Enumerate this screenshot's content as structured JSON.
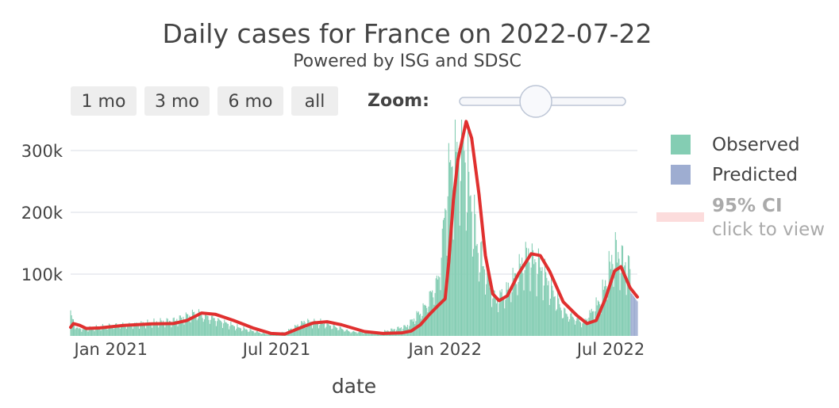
{
  "header": {
    "title": "Daily cases for France on 2022-07-22",
    "subtitle": "Powered by ISG and SDSC"
  },
  "controls": {
    "range_buttons": [
      "1 mo",
      "3 mo",
      "6 mo",
      "all"
    ],
    "zoom_label": "Zoom:",
    "zoom_value": 0.45
  },
  "legend": {
    "observed": "Observed",
    "predicted": "Predicted",
    "ci_label": "95% CI",
    "ci_hint": "click to view"
  },
  "colors": {
    "observed": "#84cdb3",
    "predicted": "#9eadd1",
    "smooth": "#e0302f",
    "ci": "#fcdcdc",
    "grid": "#e5e8ee"
  },
  "chart_data": {
    "type": "bar",
    "title": "Daily cases for France on 2022-07-22",
    "subtitle": "Powered by ISG and SDSC",
    "xlabel": "date",
    "ylabel": "",
    "x_range": [
      "2020-11-18",
      "2022-07-30"
    ],
    "ylim": [
      0,
      350000
    ],
    "y_ticks": [
      100000,
      200000,
      300000
    ],
    "y_tick_labels": [
      "100k",
      "200k",
      "300k"
    ],
    "x_tick_labels": [
      "Jan 2021",
      "Jul 2021",
      "Jan 2022",
      "Jul 2022"
    ],
    "x_tick_dates": [
      "2021-01-01",
      "2021-07-01",
      "2022-01-01",
      "2022-07-01"
    ],
    "grid": true,
    "legend_position": "right",
    "series": [
      {
        "name": "Observed",
        "kind": "bar",
        "start": "2020-11-18",
        "end": "2022-07-22",
        "anchors": [
          [
            "2020-11-18",
            35000
          ],
          [
            "2020-11-25",
            12000
          ],
          [
            "2020-12-10",
            13000
          ],
          [
            "2021-01-10",
            18000
          ],
          [
            "2021-02-10",
            21000
          ],
          [
            "2021-03-10",
            25000
          ],
          [
            "2021-04-05",
            38000
          ],
          [
            "2021-04-25",
            28000
          ],
          [
            "2021-05-20",
            14000
          ],
          [
            "2021-06-20",
            3000
          ],
          [
            "2021-07-10",
            6000
          ],
          [
            "2021-08-01",
            24000
          ],
          [
            "2021-08-20",
            22000
          ],
          [
            "2021-09-20",
            7000
          ],
          [
            "2021-10-20",
            5000
          ],
          [
            "2021-11-20",
            16000
          ],
          [
            "2021-12-10",
            48000
          ],
          [
            "2021-12-25",
            95000
          ],
          [
            "2022-01-05",
            270000
          ],
          [
            "2022-01-20",
            330000
          ],
          [
            "2022-02-05",
            150000
          ],
          [
            "2022-02-25",
            60000
          ],
          [
            "2022-03-10",
            75000
          ],
          [
            "2022-04-01",
            135000
          ],
          [
            "2022-04-15",
            115000
          ],
          [
            "2022-05-10",
            40000
          ],
          [
            "2022-06-01",
            22000
          ],
          [
            "2022-06-20",
            60000
          ],
          [
            "2022-07-05",
            140000
          ],
          [
            "2022-07-22",
            110000
          ]
        ]
      },
      {
        "name": "Predicted",
        "kind": "bar",
        "start": "2022-07-23",
        "end": "2022-07-30",
        "values": [
          70000,
          68000,
          66000,
          64000,
          62000,
          60000,
          58000,
          56000
        ]
      },
      {
        "name": "Smoothed",
        "kind": "line",
        "points": [
          [
            "2020-11-18",
            14000
          ],
          [
            "2020-11-21",
            20000
          ],
          [
            "2020-11-28",
            17000
          ],
          [
            "2020-12-05",
            12000
          ],
          [
            "2020-12-20",
            13000
          ],
          [
            "2021-01-15",
            17000
          ],
          [
            "2021-02-15",
            19500
          ],
          [
            "2021-03-10",
            20000
          ],
          [
            "2021-03-25",
            25000
          ],
          [
            "2021-04-10",
            37000
          ],
          [
            "2021-04-25",
            35000
          ],
          [
            "2021-05-15",
            25000
          ],
          [
            "2021-06-05",
            13000
          ],
          [
            "2021-06-25",
            4000
          ],
          [
            "2021-07-10",
            3000
          ],
          [
            "2021-07-25",
            12000
          ],
          [
            "2021-08-10",
            21000
          ],
          [
            "2021-08-25",
            23000
          ],
          [
            "2021-09-10",
            18000
          ],
          [
            "2021-10-05",
            7000
          ],
          [
            "2021-10-25",
            4000
          ],
          [
            "2021-11-15",
            5000
          ],
          [
            "2021-11-25",
            8000
          ],
          [
            "2021-12-05",
            18000
          ],
          [
            "2021-12-15",
            35000
          ],
          [
            "2021-12-25",
            50000
          ],
          [
            "2022-01-01",
            60000
          ],
          [
            "2022-01-05",
            120000
          ],
          [
            "2022-01-10",
            220000
          ],
          [
            "2022-01-15",
            285000
          ],
          [
            "2022-01-24",
            347000
          ],
          [
            "2022-01-30",
            320000
          ],
          [
            "2022-02-07",
            230000
          ],
          [
            "2022-02-14",
            130000
          ],
          [
            "2022-02-22",
            68000
          ],
          [
            "2022-03-01",
            57000
          ],
          [
            "2022-03-10",
            65000
          ],
          [
            "2022-03-22",
            100000
          ],
          [
            "2022-04-05",
            133000
          ],
          [
            "2022-04-15",
            130000
          ],
          [
            "2022-04-25",
            105000
          ],
          [
            "2022-05-10",
            55000
          ],
          [
            "2022-05-25",
            33000
          ],
          [
            "2022-06-05",
            20000
          ],
          [
            "2022-06-15",
            25000
          ],
          [
            "2022-06-25",
            60000
          ],
          [
            "2022-07-05",
            105000
          ],
          [
            "2022-07-12",
            112000
          ],
          [
            "2022-07-22",
            78000
          ],
          [
            "2022-07-30",
            63000
          ]
        ]
      }
    ]
  }
}
